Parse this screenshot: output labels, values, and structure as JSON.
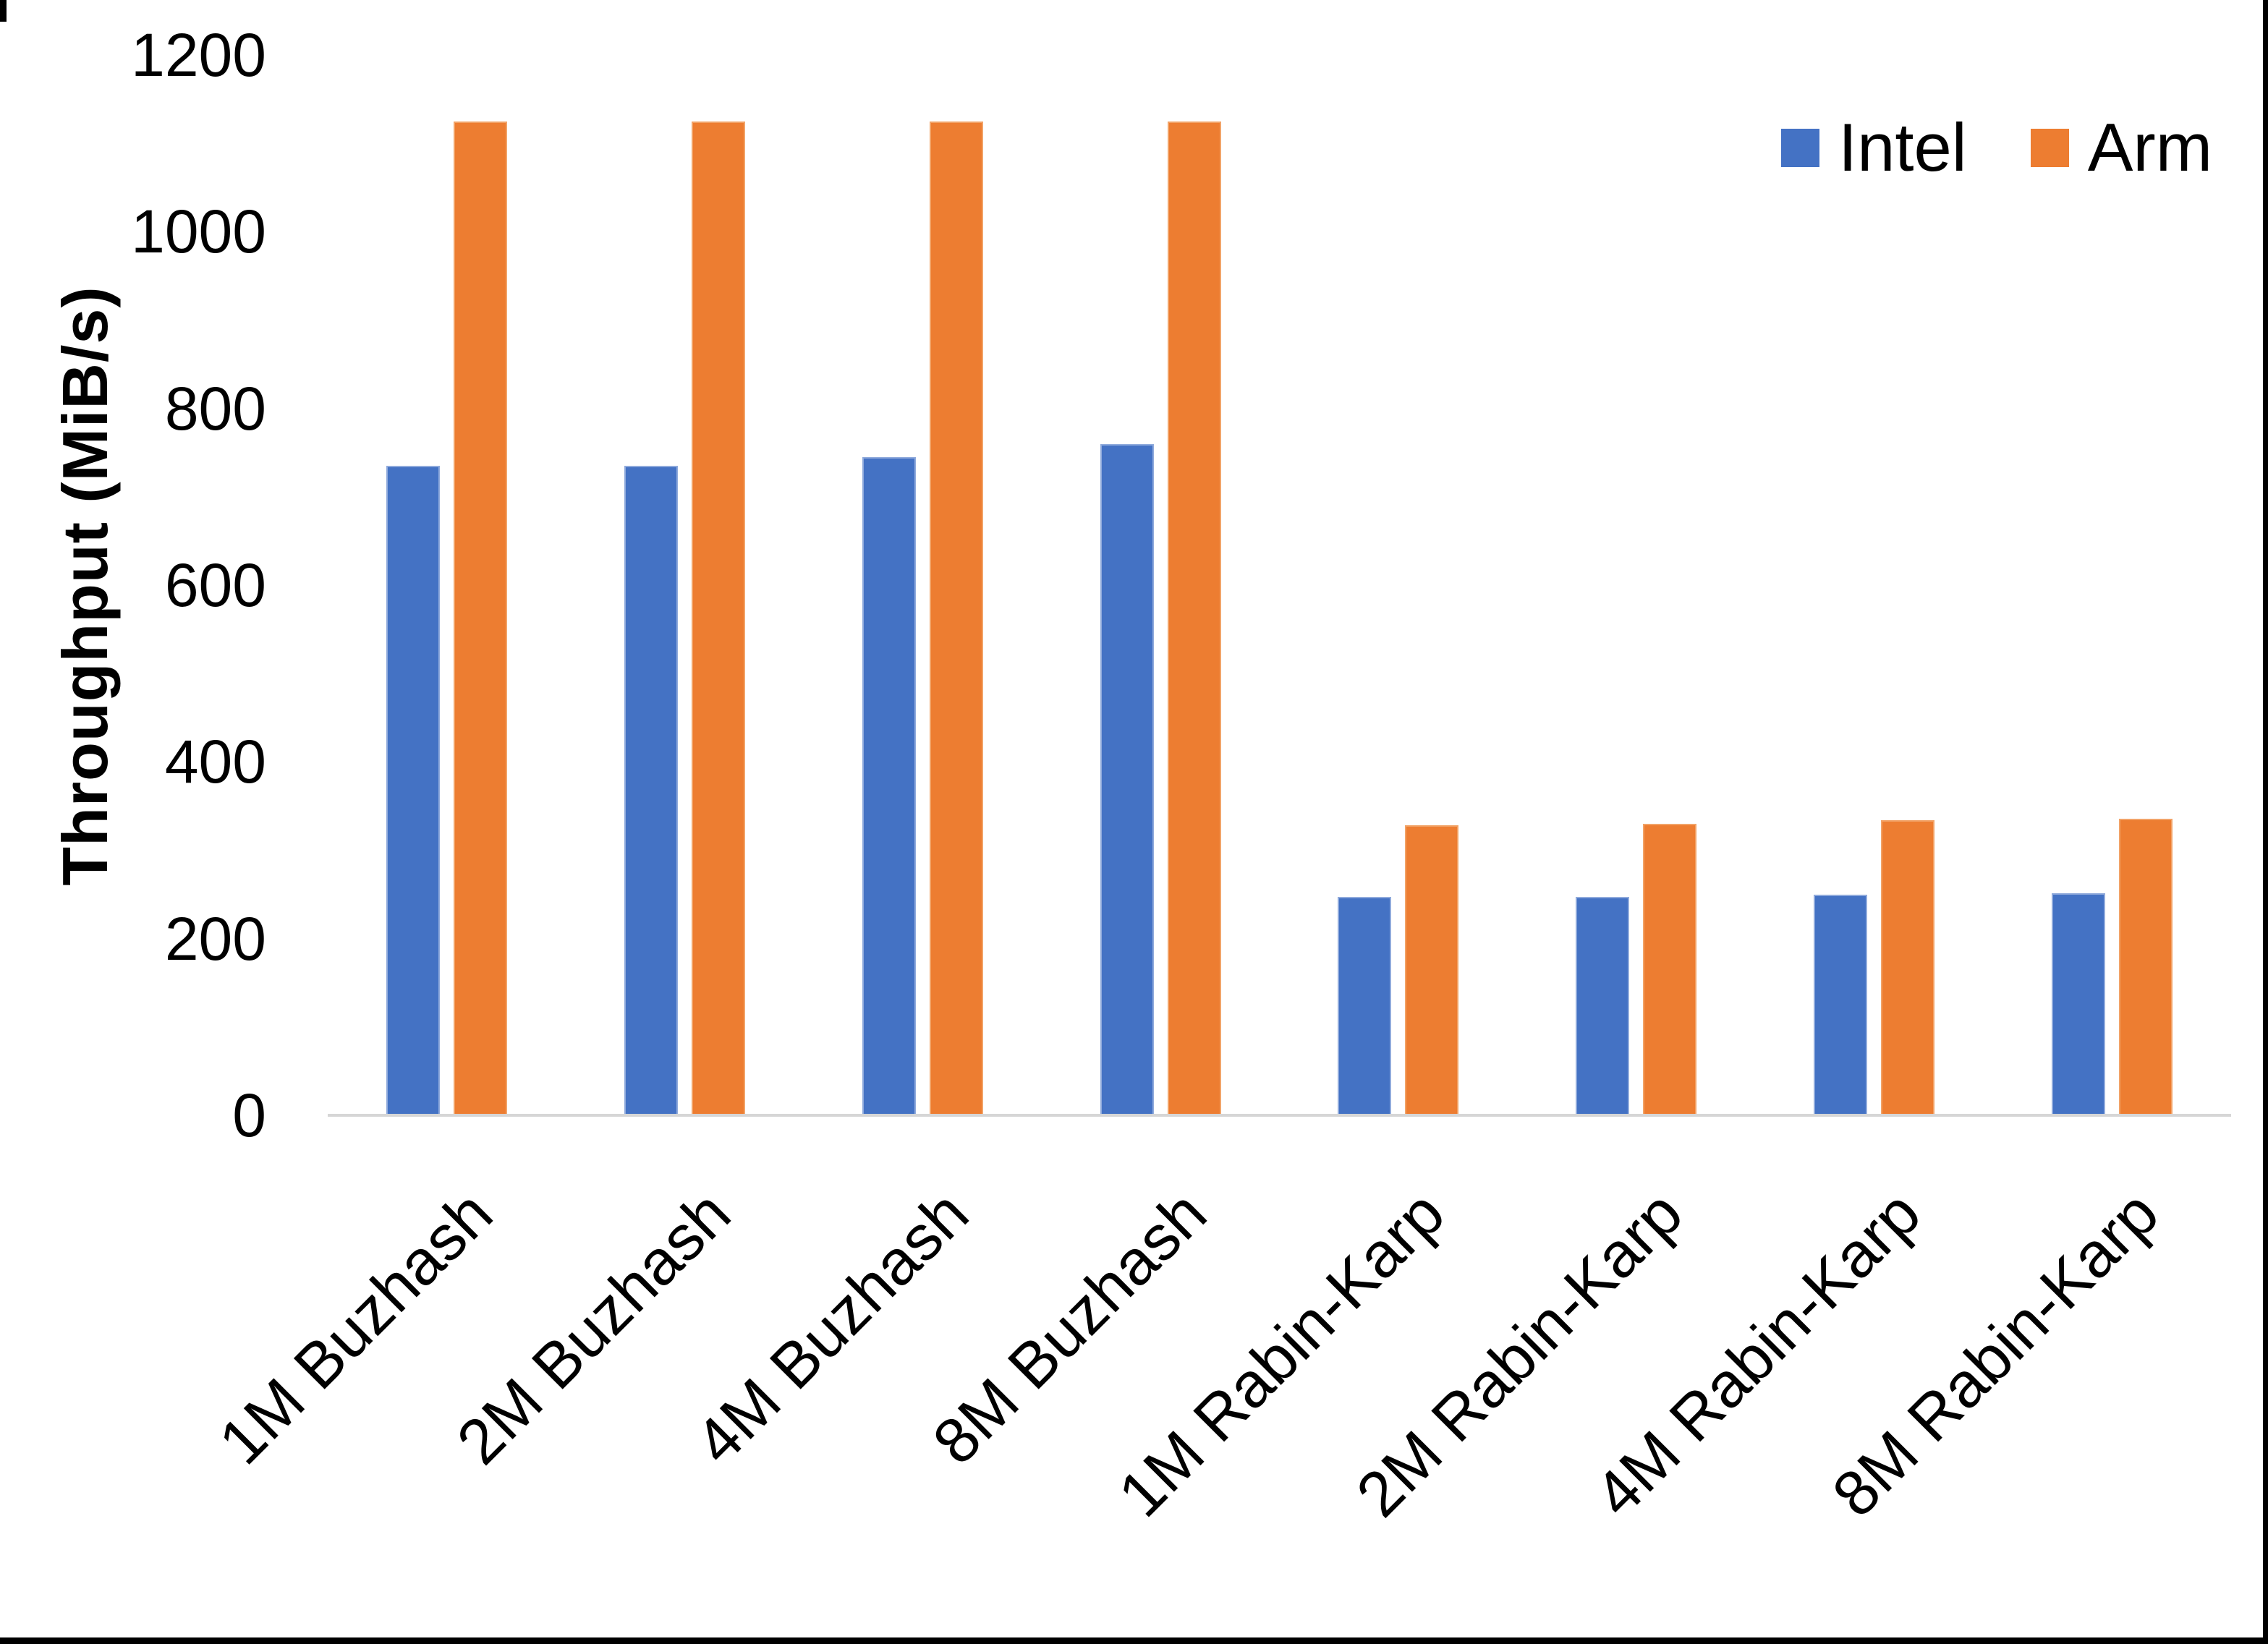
{
  "chart_data": {
    "type": "bar",
    "title": "",
    "ylabel": "Throughput (MiB/s)",
    "xlabel": "",
    "ylim": [
      0,
      1200
    ],
    "yticks": [
      0,
      200,
      400,
      600,
      800,
      1000,
      1200
    ],
    "grid": false,
    "legend_position": "top-right",
    "categories": [
      "1M Buzhash",
      "2M Buzhash",
      "4M Buzhash",
      "8M Buzhash",
      "1M Rabin-Karp",
      "2M Rabin-Karp",
      "4M Rabin-Karp",
      "8M Rabin-Karp"
    ],
    "series": [
      {
        "name": "Intel",
        "color": "#4472C4",
        "edge_color": "#8FAADC",
        "values": [
          735,
          735,
          745,
          760,
          247,
          247,
          250,
          251
        ]
      },
      {
        "name": "Arm",
        "color": "#ED7D31",
        "edge_color": "#F2A367",
        "values": [
          1125,
          1125,
          1125,
          1125,
          328,
          330,
          334,
          336
        ]
      }
    ],
    "colors": {
      "axis_line": "#D6D6D6",
      "text": "#000000",
      "background": "#FFFFFF"
    }
  }
}
